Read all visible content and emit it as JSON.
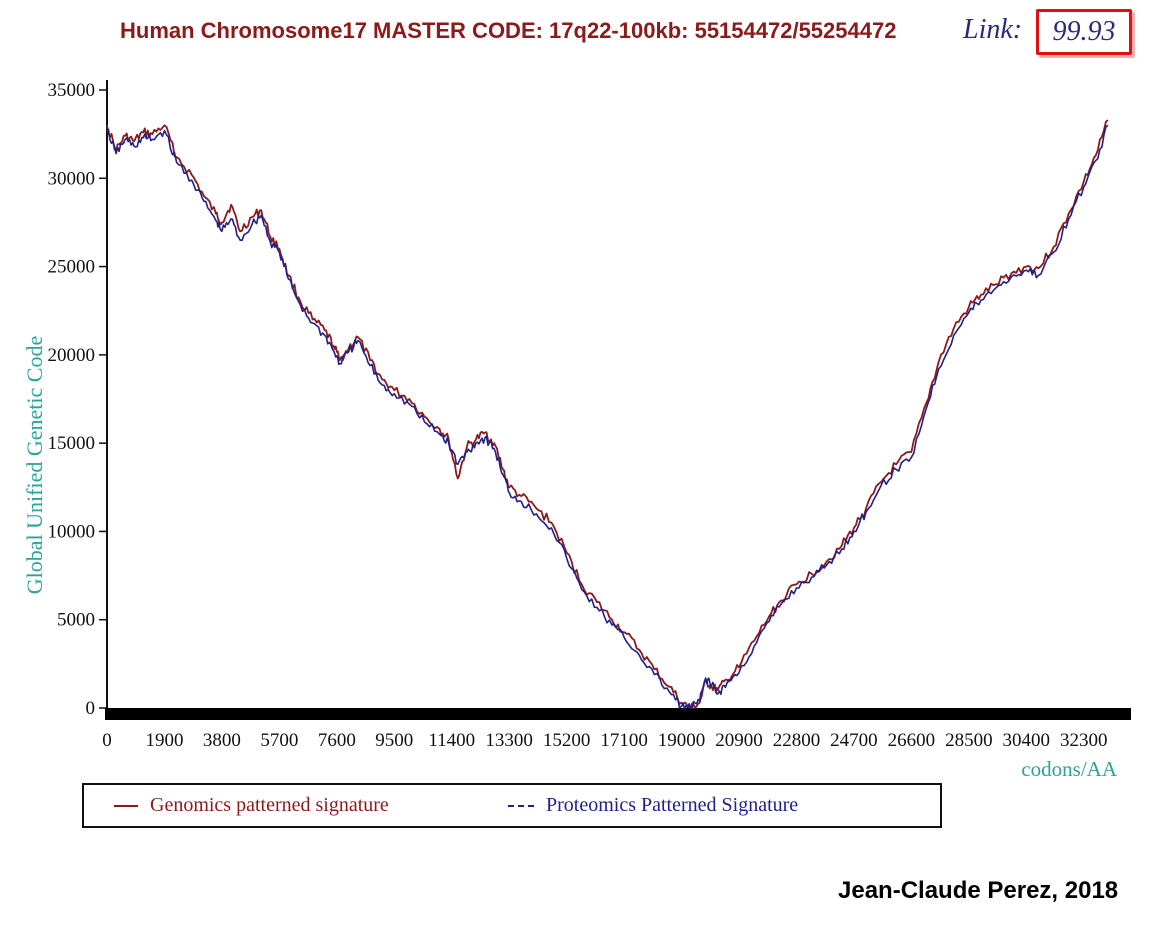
{
  "header": {
    "title": "Human Chromosome17 MASTER CODE: 17q22-100kb: 55154472/55254472",
    "link_label": "Link:",
    "link_value": "99.93"
  },
  "credit": "Jean-Claude Perez, 2018",
  "colors": {
    "title": "#8b1a1a",
    "link_box": "#e01010",
    "genomics": "#8b1a1a",
    "proteomics": "#20208a",
    "axis_label": "#2aa39a"
  },
  "chart_data": {
    "type": "line",
    "ylabel": "Global Unified Genetic Code",
    "xlabel": "codons/AA",
    "xlim": [
      0,
      33400
    ],
    "ylim": [
      0,
      35000
    ],
    "x_ticks": [
      "0",
      "1900",
      "3800",
      "5700",
      "7600",
      "9500",
      "11400",
      "13300",
      "15200",
      "17100",
      "19000",
      "20900",
      "22800",
      "24700",
      "26600",
      "28500",
      "30400",
      "32300"
    ],
    "x_tick_values": [
      0,
      1900,
      3800,
      5700,
      7600,
      9500,
      11400,
      13300,
      15200,
      17100,
      19000,
      20900,
      22800,
      24700,
      26600,
      28500,
      30400,
      32300
    ],
    "y_ticks": [
      "35000",
      "30000",
      "25000",
      "20000",
      "15000",
      "10000",
      "5000",
      "0"
    ],
    "y_tick_values": [
      35000,
      30000,
      25000,
      20000,
      15000,
      10000,
      5000,
      0
    ],
    "grid": false,
    "legend_position": "bottom",
    "series": [
      {
        "name": "Genomics patterned signature",
        "style": "solid",
        "x": [
          0,
          300,
          600,
          900,
          1200,
          1500,
          1900,
          2300,
          2800,
          3200,
          3600,
          3800,
          4100,
          4400,
          4800,
          5100,
          5400,
          5700,
          6000,
          6400,
          6800,
          7200,
          7500,
          7700,
          8000,
          8300,
          8700,
          9100,
          9500,
          10000,
          10500,
          11000,
          11300,
          11600,
          11900,
          12200,
          12500,
          12800,
          13100,
          13300,
          13700,
          14200,
          14700,
          15200,
          15700,
          16200,
          16700,
          17100,
          17600,
          18100,
          18600,
          19000,
          19300,
          19600,
          19800,
          20000,
          20200,
          20500,
          20900,
          21400,
          21900,
          22300,
          22800,
          23300,
          23800,
          24300,
          24700,
          25100,
          25600,
          26100,
          26600,
          27100,
          27500,
          28000,
          28500,
          28900,
          29400,
          29900,
          30400,
          30800,
          31300,
          31800,
          32300,
          32700,
          33100
        ],
        "y": [
          33000,
          31600,
          32400,
          32100,
          32600,
          32500,
          33000,
          31200,
          30200,
          29000,
          28000,
          27500,
          28500,
          27000,
          27800,
          28200,
          26700,
          26000,
          24500,
          23000,
          22000,
          21400,
          20500,
          19700,
          20400,
          21000,
          19700,
          18600,
          18000,
          17500,
          16500,
          15800,
          15200,
          13000,
          14800,
          15200,
          15600,
          15000,
          13500,
          12500,
          12000,
          11300,
          10500,
          8800,
          7000,
          6000,
          5000,
          4300,
          3300,
          2200,
          1200,
          300,
          0,
          300,
          1500,
          1200,
          1000,
          1600,
          2300,
          3800,
          5200,
          6100,
          7000,
          7600,
          8300,
          9200,
          10200,
          11300,
          12800,
          13800,
          14500,
          17300,
          19600,
          21500,
          22700,
          23400,
          24000,
          24600,
          25000,
          24900,
          26100,
          28000,
          29800,
          31300,
          33300
        ]
      },
      {
        "name": "Proteomics Patterned Signature",
        "style": "dashed",
        "x": [
          0,
          300,
          600,
          900,
          1200,
          1500,
          1900,
          2300,
          2800,
          3200,
          3600,
          3800,
          4100,
          4400,
          4800,
          5100,
          5400,
          5700,
          6000,
          6400,
          6800,
          7200,
          7500,
          7700,
          8000,
          8300,
          8700,
          9100,
          9500,
          10000,
          10500,
          11000,
          11300,
          11600,
          11900,
          12200,
          12500,
          12800,
          13100,
          13300,
          13700,
          14200,
          14700,
          15200,
          15700,
          16200,
          16700,
          17100,
          17600,
          18100,
          18600,
          19000,
          19300,
          19600,
          19800,
          20000,
          20200,
          20500,
          20900,
          21400,
          21900,
          22300,
          22800,
          23300,
          23800,
          24300,
          24700,
          25100,
          25600,
          26100,
          26600,
          27100,
          27500,
          28000,
          28500,
          28900,
          29400,
          29900,
          30400,
          30800,
          31300,
          31800,
          32300,
          32700,
          33100
        ],
        "y": [
          32800,
          31400,
          32200,
          31800,
          32300,
          32200,
          32700,
          30900,
          29900,
          28700,
          27600,
          27000,
          27700,
          26500,
          27400,
          27900,
          26400,
          25800,
          24300,
          22800,
          21800,
          21100,
          20200,
          19500,
          20200,
          20800,
          19400,
          18300,
          17800,
          17200,
          16200,
          15500,
          15000,
          13800,
          14500,
          15000,
          15300,
          14700,
          13200,
          12200,
          11700,
          11000,
          10200,
          8500,
          6700,
          5700,
          4700,
          4000,
          3000,
          1900,
          900,
          100,
          0,
          400,
          1700,
          1300,
          800,
          1400,
          2000,
          3500,
          4900,
          5900,
          6800,
          7400,
          8100,
          9000,
          10000,
          11100,
          12600,
          13500,
          14200,
          17000,
          19200,
          21100,
          22400,
          23100,
          23800,
          24400,
          24800,
          24500,
          25800,
          27700,
          29500,
          31000,
          33000
        ]
      }
    ]
  }
}
